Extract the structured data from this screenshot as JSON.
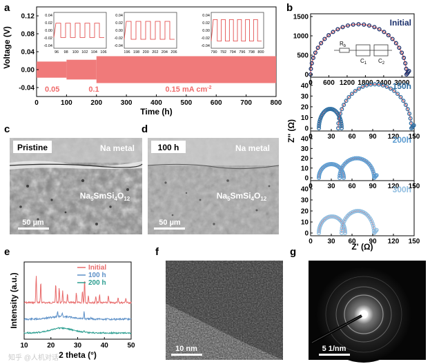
{
  "panels": {
    "a": "a",
    "b": "b",
    "c": "c",
    "d": "d",
    "e": "e",
    "f": "f",
    "g": "g"
  },
  "chart_data": [
    {
      "id": "a",
      "type": "line",
      "xlabel": "Time (h)",
      "ylabel": "Voltage (V)",
      "xlim": [
        0,
        800
      ],
      "ylim": [
        -0.06,
        0.14
      ],
      "xticks": [
        0,
        100,
        200,
        300,
        400,
        500,
        600,
        700,
        800
      ],
      "yticks": [
        -0.04,
        0.0,
        0.04,
        0.08,
        0.12
      ],
      "ytick_labels": [
        "-0.04",
        "0.00",
        "0.04",
        "0.08",
        "0.12"
      ],
      "band_color": "#f07a7a",
      "segments": [
        {
          "x0": 0,
          "x1": 100,
          "vmax": 0.018,
          "vmin": -0.018,
          "label": "0.05"
        },
        {
          "x0": 100,
          "x1": 200,
          "vmax": 0.022,
          "vmin": -0.022,
          "label": "0.1"
        },
        {
          "x0": 200,
          "x1": 800,
          "vmax": 0.03,
          "vmin": -0.03,
          "label": "0.15 mA cm"
        }
      ],
      "current_unit_sup": "-2",
      "insets": [
        {
          "xticks": [
            96,
            98,
            100,
            102,
            104,
            106
          ],
          "yticks": [
            "0.04",
            "0.02",
            "0.00",
            "-0.02",
            "-0.04"
          ],
          "amp": 0.02,
          "cycles": 5
        },
        {
          "xticks": [
            196,
            198,
            200,
            202,
            204,
            206
          ],
          "yticks": [
            "0.04",
            "0.02",
            "0.00",
            "-0.02",
            "-0.04"
          ],
          "amp": 0.025,
          "cycles": 5
        },
        {
          "xticks": [
            790,
            792,
            794,
            796,
            798,
            800
          ],
          "yticks": [
            "0.04",
            "0.02",
            "0.00",
            "-0.02",
            "-0.04"
          ],
          "amp": 0.03,
          "cycles": 6
        }
      ]
    },
    {
      "id": "b",
      "type": "scatter",
      "xlabel": "Z' (Ω)",
      "ylabel": "Z'' (Ω)",
      "subplots": [
        {
          "label": "Initial",
          "label_color": "#1a2f6b",
          "xlim": [
            0,
            3400
          ],
          "ylim": [
            0,
            1500
          ],
          "xticks": [
            0,
            600,
            1200,
            1800,
            2400,
            3000
          ],
          "yticks": [
            0,
            500,
            1000,
            1500
          ],
          "arcs": [
            {
              "start": 0,
              "end": 3150,
              "height": 1300
            }
          ],
          "marker_color": "#1a2f6b",
          "circuit": {
            "r_label": "R",
            "r_sub": "b",
            "c1_label": "C",
            "c1_sub": "1",
            "c2_label": "C",
            "c2_sub": "2"
          }
        },
        {
          "label": "150h",
          "label_color": "#2f6fa3",
          "xlim": [
            0,
            150
          ],
          "ylim": [
            0,
            45
          ],
          "xticks": [
            0,
            30,
            60,
            90,
            120,
            150
          ],
          "yticks": [
            0,
            10,
            20,
            30,
            40
          ],
          "arcs": [
            {
              "start": 12,
              "end": 45,
              "height": 18
            },
            {
              "start": 40,
              "end": 146,
              "height": 41
            }
          ],
          "marker_color": "#2f6fa3"
        },
        {
          "label": "200h",
          "label_color": "#5b9bd0",
          "xlim": [
            0,
            150
          ],
          "ylim": [
            0,
            45
          ],
          "xticks": [
            0,
            30,
            60,
            90,
            120,
            150
          ],
          "yticks": [
            0,
            10,
            20,
            30,
            40
          ],
          "arcs": [
            {
              "start": 12,
              "end": 48,
              "height": 14
            },
            {
              "start": 42,
              "end": 92,
              "height": 20
            }
          ],
          "marker_color": "#5b9bd0"
        },
        {
          "label": "300h",
          "label_color": "#8fbde0",
          "xlim": [
            0,
            150
          ],
          "ylim": [
            0,
            45
          ],
          "xticks": [
            0,
            30,
            60,
            90,
            120,
            150
          ],
          "yticks": [
            0,
            10,
            20,
            30,
            40
          ],
          "arcs": [
            {
              "start": 12,
              "end": 50,
              "height": 15
            },
            {
              "start": 45,
              "end": 92,
              "height": 20
            }
          ],
          "marker_color": "#8fbde0"
        }
      ]
    },
    {
      "id": "e",
      "type": "line",
      "xlabel": "2 theta (°)",
      "ylabel": "Intensity (a.u.)",
      "xlim": [
        10,
        50
      ],
      "xticks": [
        10,
        20,
        30,
        40,
        50
      ],
      "series": [
        {
          "name": "Initial",
          "color": "#e86a6a"
        },
        {
          "name": "100 h",
          "color": "#5b8fc7"
        },
        {
          "name": "200 h",
          "color": "#2a9d8f"
        }
      ]
    }
  ],
  "images": {
    "c": {
      "tag": "Pristine",
      "metal": "Na metal",
      "electrolyte": "Na5SmSi4O12",
      "scale": "50 µm"
    },
    "d": {
      "tag": "100 h",
      "metal": "Na metal",
      "electrolyte": "Na5SmSi4O12",
      "scale": "50 µm"
    },
    "f": {
      "scale": "10 nm"
    },
    "g": {
      "scale": "5 1/nm"
    }
  },
  "formula": {
    "na": "Na",
    "na_sub": "5",
    "sm": "SmSi",
    "si_sub": "4",
    "o": "O",
    "o_sub": "12"
  },
  "watermark": "知乎 @人机对话"
}
